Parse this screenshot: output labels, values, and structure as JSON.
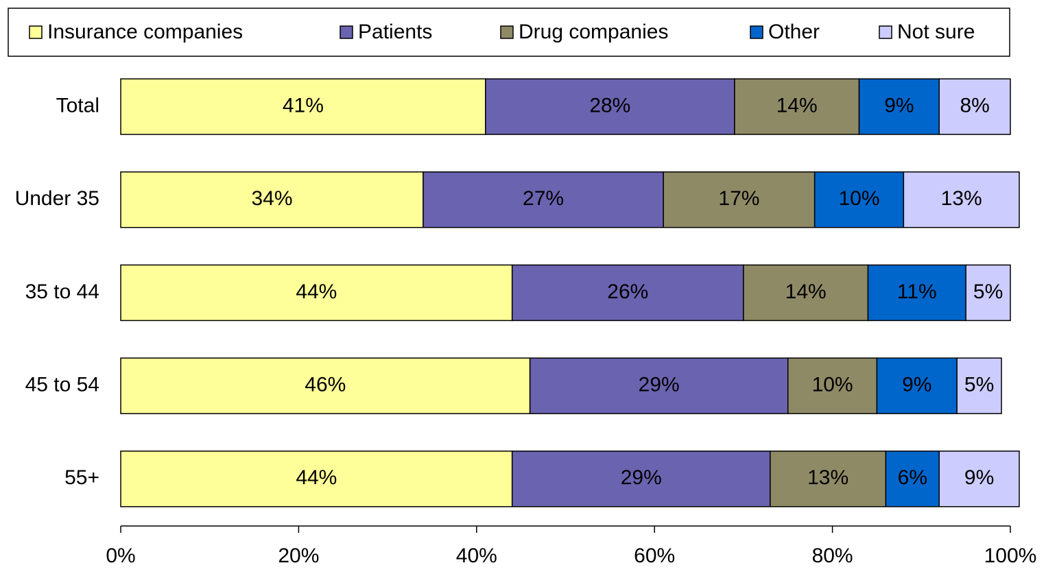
{
  "chart_data": {
    "type": "stacked_bar_horizontal",
    "categories": [
      "Total",
      "Under 35",
      "35 to 44",
      "45 to 54",
      "55+"
    ],
    "series": [
      {
        "name": "Insurance companies",
        "color": "#ffff99",
        "values": [
          41,
          34,
          44,
          46,
          44
        ],
        "value_labels": [
          "41%",
          "34%",
          "44%",
          "46%",
          "44%"
        ]
      },
      {
        "name": "Patients",
        "color": "#6a63b0",
        "values": [
          28,
          27,
          26,
          29,
          29
        ],
        "value_labels": [
          "28%",
          "27%",
          "26%",
          "29%",
          "29%"
        ]
      },
      {
        "name": "Drug companies",
        "color": "#8f8a66",
        "values": [
          14,
          17,
          14,
          10,
          13
        ],
        "value_labels": [
          "14%",
          "17%",
          "14%",
          "10%",
          "13%"
        ]
      },
      {
        "name": "Other",
        "color": "#0066cc",
        "values": [
          9,
          10,
          11,
          9,
          6
        ],
        "value_labels": [
          "9%",
          "10%",
          "11%",
          "9%",
          "6%"
        ]
      },
      {
        "name": "Not sure",
        "color": "#ccccff",
        "values": [
          8,
          13,
          5,
          5,
          9
        ],
        "value_labels": [
          "8%",
          "13%",
          "5%",
          "5%",
          "9%"
        ]
      }
    ],
    "xlim": [
      0,
      100
    ],
    "xticks": [
      {
        "value": 0,
        "label": "0%"
      },
      {
        "value": 20,
        "label": "20%"
      },
      {
        "value": 40,
        "label": "40%"
      },
      {
        "value": 60,
        "label": "60%"
      },
      {
        "value": 80,
        "label": "80%"
      },
      {
        "value": 100,
        "label": "100%"
      }
    ],
    "legend": "top"
  }
}
